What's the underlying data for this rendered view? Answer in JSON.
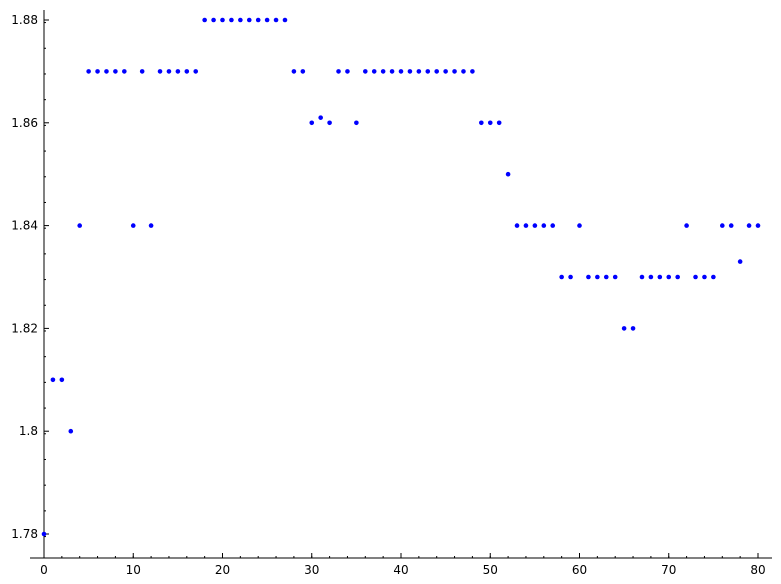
{
  "chart_data": {
    "type": "scatter",
    "title": "",
    "xlabel": "",
    "ylabel": "",
    "xlim": [
      0,
      80
    ],
    "ylim": [
      1.78,
      1.88
    ],
    "x_ticks": [
      "0",
      "10",
      "20",
      "30",
      "40",
      "50",
      "60",
      "70",
      "80"
    ],
    "y_ticks": [
      "1.78",
      "1.8",
      "1.82",
      "1.84",
      "1.86",
      "1.88"
    ],
    "grid": false,
    "colors": {
      "marker": "#0000ff",
      "axis": "#000000"
    },
    "series": [
      {
        "x": [
          0,
          1,
          2,
          3,
          4,
          5,
          6,
          7,
          8,
          9,
          10,
          11,
          12,
          13,
          14,
          15,
          16,
          17,
          18,
          19,
          20,
          21,
          22,
          23,
          24,
          25,
          26,
          27,
          28,
          29,
          30,
          31,
          32,
          33,
          34,
          35,
          36,
          37,
          38,
          39,
          40,
          41,
          42,
          43,
          44,
          45,
          46,
          47,
          48,
          49,
          50,
          51,
          52,
          53,
          54,
          55,
          56,
          57,
          58,
          59,
          60,
          61,
          62,
          63,
          64,
          65,
          66,
          67,
          68,
          69,
          70,
          71,
          72,
          73,
          74,
          75,
          76,
          77,
          78,
          79,
          80
        ],
        "y": [
          1.78,
          1.81,
          1.81,
          1.8,
          1.84,
          1.87,
          1.87,
          1.87,
          1.87,
          1.87,
          1.84,
          1.87,
          1.84,
          1.87,
          1.87,
          1.87,
          1.87,
          1.87,
          1.88,
          1.88,
          1.88,
          1.88,
          1.88,
          1.88,
          1.88,
          1.88,
          1.88,
          1.88,
          1.87,
          1.87,
          1.86,
          1.861,
          1.86,
          1.87,
          1.87,
          1.86,
          1.87,
          1.87,
          1.87,
          1.87,
          1.87,
          1.87,
          1.87,
          1.87,
          1.87,
          1.87,
          1.87,
          1.87,
          1.87,
          1.86,
          1.86,
          1.86,
          1.85,
          1.84,
          1.84,
          1.84,
          1.84,
          1.84,
          1.83,
          1.83,
          1.84,
          1.83,
          1.83,
          1.83,
          1.83,
          1.82,
          1.82,
          1.83,
          1.83,
          1.83,
          1.83,
          1.83,
          1.84,
          1.83,
          1.83,
          1.83,
          1.84,
          1.84,
          1.833,
          1.84,
          1.84
        ]
      }
    ]
  }
}
